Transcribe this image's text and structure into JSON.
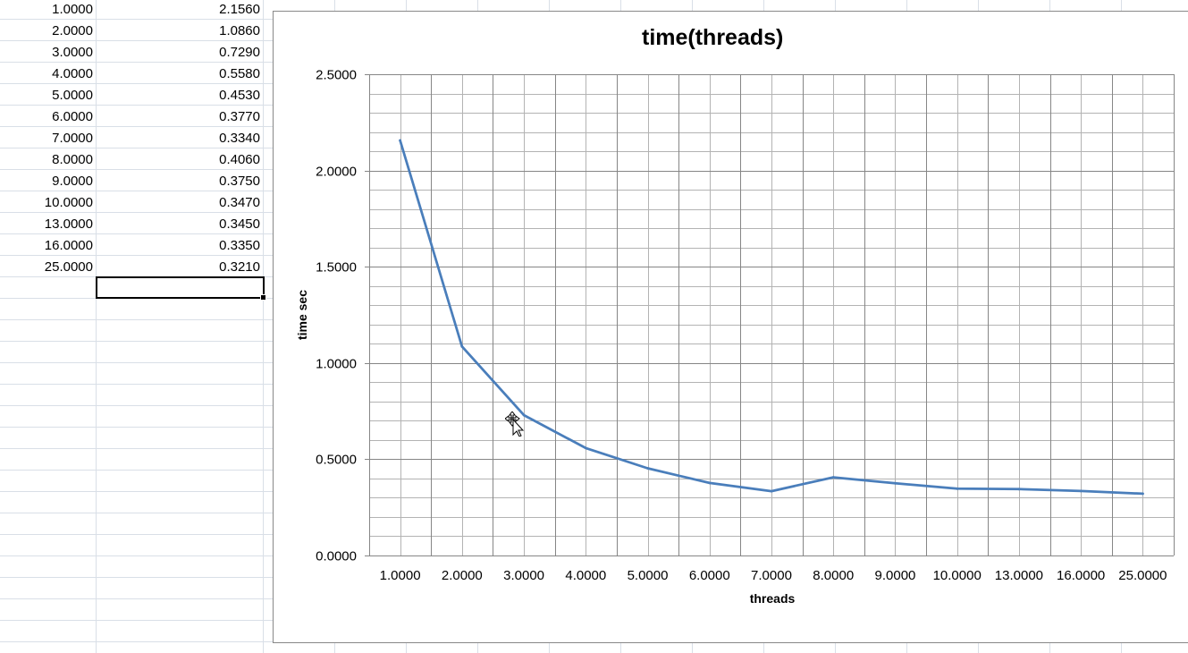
{
  "sheet": {
    "rows": [
      {
        "a": "1.0000",
        "b": "2.1560"
      },
      {
        "a": "2.0000",
        "b": "1.0860"
      },
      {
        "a": "3.0000",
        "b": "0.7290"
      },
      {
        "a": "4.0000",
        "b": "0.5580"
      },
      {
        "a": "5.0000",
        "b": "0.4530"
      },
      {
        "a": "6.0000",
        "b": "0.3770"
      },
      {
        "a": "7.0000",
        "b": "0.3340"
      },
      {
        "a": "8.0000",
        "b": "0.4060"
      },
      {
        "a": "9.0000",
        "b": "0.3750"
      },
      {
        "a": "10.0000",
        "b": "0.3470"
      },
      {
        "a": "13.0000",
        "b": "0.3450"
      },
      {
        "a": "16.0000",
        "b": "0.3350"
      },
      {
        "a": "25.0000",
        "b": "0.3210"
      }
    ],
    "selected_cell_value": ""
  },
  "chart_data": {
    "type": "line",
    "title": "time(threads)",
    "xlabel": "threads",
    "ylabel": "time sec",
    "categories": [
      "1.0000",
      "2.0000",
      "3.0000",
      "4.0000",
      "5.0000",
      "6.0000",
      "7.0000",
      "8.0000",
      "9.0000",
      "10.0000",
      "13.0000",
      "16.0000",
      "25.0000"
    ],
    "series": [
      {
        "values": [
          2.156,
          1.086,
          0.729,
          0.558,
          0.453,
          0.377,
          0.334,
          0.406,
          0.375,
          0.347,
          0.345,
          0.335,
          0.321
        ]
      }
    ],
    "ylim": [
      0,
      2.5
    ],
    "yticks": [
      "0.0000",
      "0.5000",
      "1.0000",
      "1.5000",
      "2.0000",
      "2.5000"
    ],
    "y_major_step": 0.5,
    "y_minor_step": 0.1,
    "grid": true,
    "legend": "none",
    "line_color": "#4a7ebb",
    "gridline_color": "#868686"
  }
}
